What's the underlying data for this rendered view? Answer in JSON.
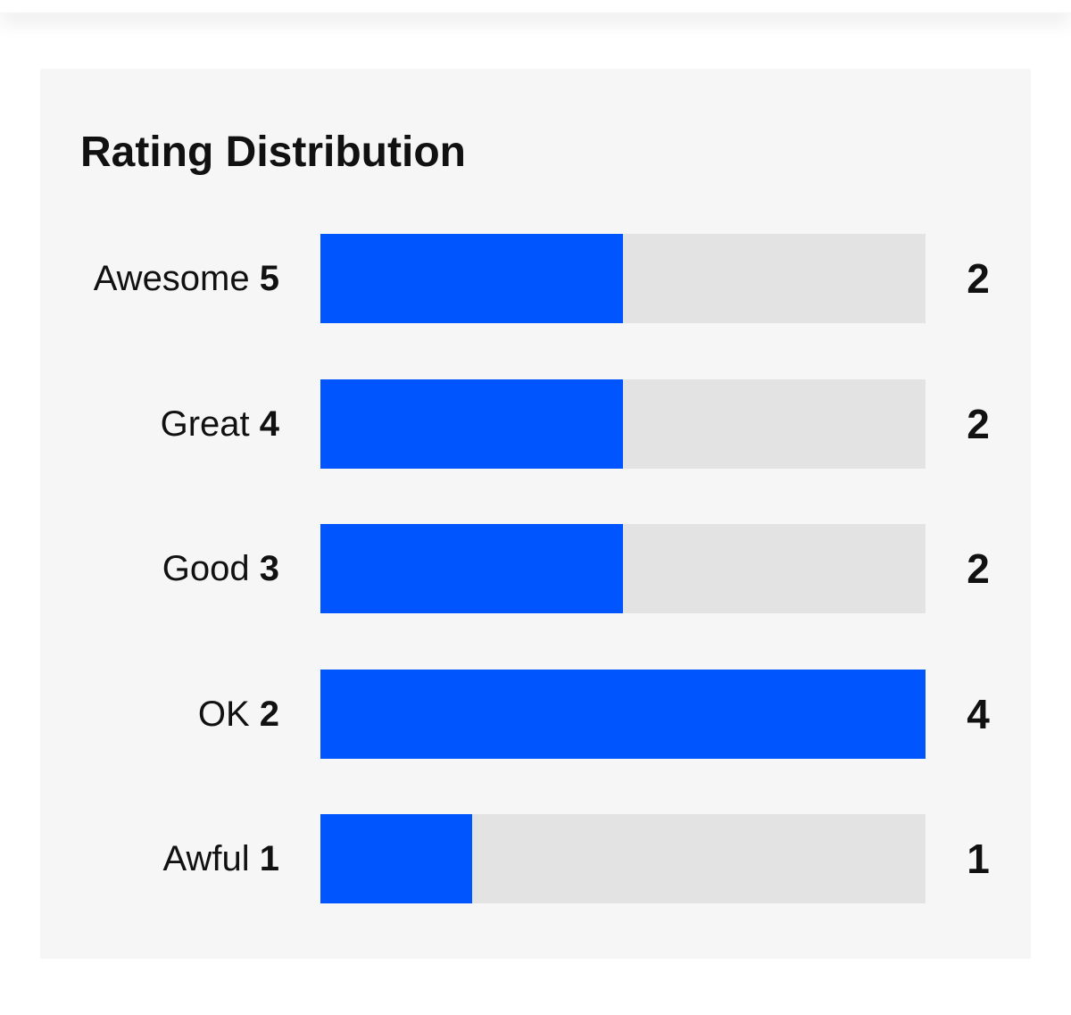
{
  "title": "Rating Distribution",
  "colors": {
    "bar_fill": "#0055ff",
    "bar_track": "#e3e3e3",
    "card_background": "#f6f6f6"
  },
  "chart_data": {
    "type": "bar",
    "orientation": "horizontal",
    "title": "Rating Distribution",
    "categories": [
      "Awesome 5",
      "Great 4",
      "Good 3",
      "OK 2",
      "Awful 1"
    ],
    "values": [
      2,
      2,
      2,
      4,
      1
    ],
    "xlim": [
      0,
      4
    ],
    "grid": false,
    "rows": [
      {
        "name": "Awesome",
        "rating": "5",
        "count": 2
      },
      {
        "name": "Great",
        "rating": "4",
        "count": 2
      },
      {
        "name": "Good",
        "rating": "3",
        "count": 2
      },
      {
        "name": "OK",
        "rating": "2",
        "count": 4
      },
      {
        "name": "Awful",
        "rating": "1",
        "count": 1
      }
    ]
  }
}
